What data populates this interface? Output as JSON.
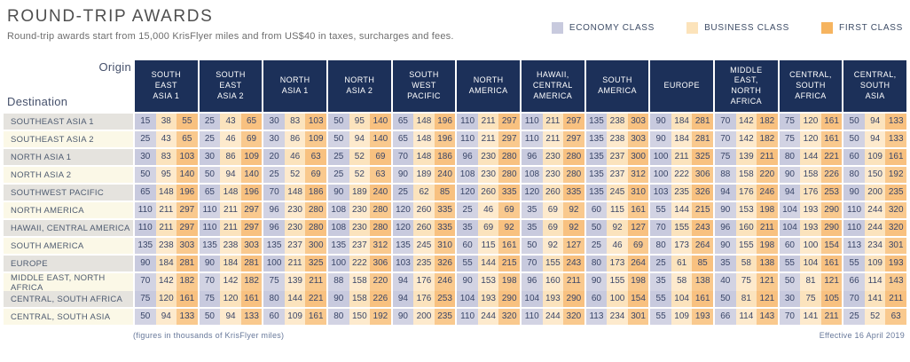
{
  "header": {
    "title": "ROUND-TRIP AWARDS",
    "subtitle": "Round-trip awards start from 15,000 KrisFlyer miles and from US$40 in taxes, surcharges and fees."
  },
  "legend": [
    {
      "label": "ECONOMY CLASS",
      "color": "#c8cade"
    },
    {
      "label": "BUSINESS CLASS",
      "color": "#fce3ba"
    },
    {
      "label": "FIRST CLASS",
      "color": "#f6b45f"
    }
  ],
  "table": {
    "origin_label": "Origin",
    "destination_label": "Destination",
    "origins": [
      "SOUTH\nEAST\nASIA 1",
      "SOUTH\nEAST\nASIA 2",
      "NORTH\nASIA 1",
      "NORTH\nASIA 2",
      "SOUTH\nWEST\nPACIFIC",
      "NORTH\nAMERICA",
      "HAWAII,\nCENTRAL\nAMERICA",
      "SOUTH\nAMERICA",
      "EUROPE",
      "MIDDLE\nEAST,\nNORTH\nAFRICA",
      "CENTRAL,\nSOUTH\nAFRICA",
      "CENTRAL,\nSOUTH\nASIA"
    ],
    "destinations": [
      "SOUTHEAST ASIA 1",
      "SOUTHEAST ASIA 2",
      "NORTH ASIA 1",
      "NORTH ASIA 2",
      "SOUTHWEST PACIFIC",
      "NORTH AMERICA",
      "HAWAII, CENTRAL AMERICA",
      "SOUTH AMERICA",
      "EUROPE",
      "MIDDLE EAST, NORTH AFRICA",
      "CENTRAL, SOUTH AFRICA",
      "CENTRAL, SOUTH ASIA"
    ],
    "class_order": [
      "economy",
      "business",
      "first"
    ],
    "rows": [
      [
        [
          15,
          38,
          55
        ],
        [
          25,
          43,
          65
        ],
        [
          30,
          83,
          103
        ],
        [
          50,
          95,
          140
        ],
        [
          65,
          148,
          196
        ],
        [
          110,
          211,
          297
        ],
        [
          110,
          211,
          297
        ],
        [
          135,
          238,
          303
        ],
        [
          90,
          184,
          281
        ],
        [
          70,
          142,
          182
        ],
        [
          75,
          120,
          161
        ],
        [
          50,
          94,
          133
        ]
      ],
      [
        [
          25,
          43,
          65
        ],
        [
          25,
          46,
          69
        ],
        [
          30,
          86,
          109
        ],
        [
          50,
          94,
          140
        ],
        [
          65,
          148,
          196
        ],
        [
          110,
          211,
          297
        ],
        [
          110,
          211,
          297
        ],
        [
          135,
          238,
          303
        ],
        [
          90,
          184,
          281
        ],
        [
          70,
          142,
          182
        ],
        [
          75,
          120,
          161
        ],
        [
          50,
          94,
          133
        ]
      ],
      [
        [
          30,
          83,
          103
        ],
        [
          30,
          86,
          109
        ],
        [
          20,
          46,
          63
        ],
        [
          25,
          52,
          69
        ],
        [
          70,
          148,
          186
        ],
        [
          96,
          230,
          280
        ],
        [
          96,
          230,
          280
        ],
        [
          135,
          237,
          300
        ],
        [
          100,
          211,
          325
        ],
        [
          75,
          139,
          211
        ],
        [
          80,
          144,
          221
        ],
        [
          60,
          109,
          161
        ]
      ],
      [
        [
          50,
          95,
          140
        ],
        [
          50,
          94,
          140
        ],
        [
          25,
          52,
          69
        ],
        [
          25,
          52,
          63
        ],
        [
          90,
          189,
          240
        ],
        [
          108,
          230,
          280
        ],
        [
          108,
          230,
          280
        ],
        [
          135,
          237,
          312
        ],
        [
          100,
          222,
          306
        ],
        [
          88,
          158,
          220
        ],
        [
          90,
          158,
          226
        ],
        [
          80,
          150,
          192
        ]
      ],
      [
        [
          65,
          148,
          196
        ],
        [
          65,
          148,
          196
        ],
        [
          70,
          148,
          186
        ],
        [
          90,
          189,
          240
        ],
        [
          25,
          62,
          85
        ],
        [
          120,
          260,
          335
        ],
        [
          120,
          260,
          335
        ],
        [
          135,
          245,
          310
        ],
        [
          103,
          235,
          326
        ],
        [
          94,
          176,
          246
        ],
        [
          94,
          176,
          253
        ],
        [
          90,
          200,
          235
        ]
      ],
      [
        [
          110,
          211,
          297
        ],
        [
          110,
          211,
          297
        ],
        [
          96,
          230,
          280
        ],
        [
          108,
          230,
          280
        ],
        [
          120,
          260,
          335
        ],
        [
          25,
          46,
          69
        ],
        [
          35,
          69,
          92
        ],
        [
          60,
          115,
          161
        ],
        [
          55,
          144,
          215
        ],
        [
          90,
          153,
          198
        ],
        [
          104,
          193,
          290
        ],
        [
          110,
          244,
          320
        ]
      ],
      [
        [
          110,
          211,
          297
        ],
        [
          110,
          211,
          297
        ],
        [
          96,
          230,
          280
        ],
        [
          108,
          230,
          280
        ],
        [
          120,
          260,
          335
        ],
        [
          35,
          69,
          92
        ],
        [
          35,
          69,
          92
        ],
        [
          50,
          92,
          127
        ],
        [
          70,
          155,
          243
        ],
        [
          96,
          160,
          211
        ],
        [
          104,
          193,
          290
        ],
        [
          110,
          244,
          320
        ]
      ],
      [
        [
          135,
          238,
          303
        ],
        [
          135,
          238,
          303
        ],
        [
          135,
          237,
          300
        ],
        [
          135,
          237,
          312
        ],
        [
          135,
          245,
          310
        ],
        [
          60,
          115,
          161
        ],
        [
          50,
          92,
          127
        ],
        [
          25,
          46,
          69
        ],
        [
          80,
          173,
          264
        ],
        [
          90,
          155,
          198
        ],
        [
          60,
          100,
          154
        ],
        [
          113,
          234,
          301
        ]
      ],
      [
        [
          90,
          184,
          281
        ],
        [
          90,
          184,
          281
        ],
        [
          100,
          211,
          325
        ],
        [
          100,
          222,
          306
        ],
        [
          103,
          235,
          326
        ],
        [
          55,
          144,
          215
        ],
        [
          70,
          155,
          243
        ],
        [
          80,
          173,
          264
        ],
        [
          25,
          61,
          85
        ],
        [
          35,
          58,
          138
        ],
        [
          55,
          104,
          161
        ],
        [
          55,
          109,
          193
        ]
      ],
      [
        [
          70,
          142,
          182
        ],
        [
          70,
          142,
          182
        ],
        [
          75,
          139,
          211
        ],
        [
          88,
          158,
          220
        ],
        [
          94,
          176,
          246
        ],
        [
          90,
          153,
          198
        ],
        [
          96,
          160,
          211
        ],
        [
          90,
          155,
          198
        ],
        [
          35,
          58,
          138
        ],
        [
          40,
          75,
          121
        ],
        [
          50,
          81,
          121
        ],
        [
          66,
          114,
          143
        ]
      ],
      [
        [
          75,
          120,
          161
        ],
        [
          75,
          120,
          161
        ],
        [
          80,
          144,
          221
        ],
        [
          90,
          158,
          226
        ],
        [
          94,
          176,
          253
        ],
        [
          104,
          193,
          290
        ],
        [
          104,
          193,
          290
        ],
        [
          60,
          100,
          154
        ],
        [
          55,
          104,
          161
        ],
        [
          50,
          81,
          121
        ],
        [
          30,
          75,
          105
        ],
        [
          70,
          141,
          211
        ]
      ],
      [
        [
          50,
          94,
          133
        ],
        [
          50,
          94,
          133
        ],
        [
          60,
          109,
          161
        ],
        [
          80,
          150,
          192
        ],
        [
          90,
          200,
          235
        ],
        [
          110,
          244,
          320
        ],
        [
          110,
          244,
          320
        ],
        [
          113,
          234,
          301
        ],
        [
          55,
          109,
          193
        ],
        [
          66,
          114,
          143
        ],
        [
          70,
          141,
          211
        ],
        [
          25,
          52,
          63
        ]
      ]
    ]
  },
  "footer": {
    "note": "(figures in thousands of KrisFlyer miles)",
    "effective": "Effective 16 April 2019"
  },
  "colors": {
    "header_navy": "#1c3059",
    "economy_cell": "#c8cade",
    "business_cell": "#fbe3bd",
    "first_cell": "#f8c180",
    "label_gray": "#e5e3de",
    "label_cream": "#fbf8e7"
  }
}
